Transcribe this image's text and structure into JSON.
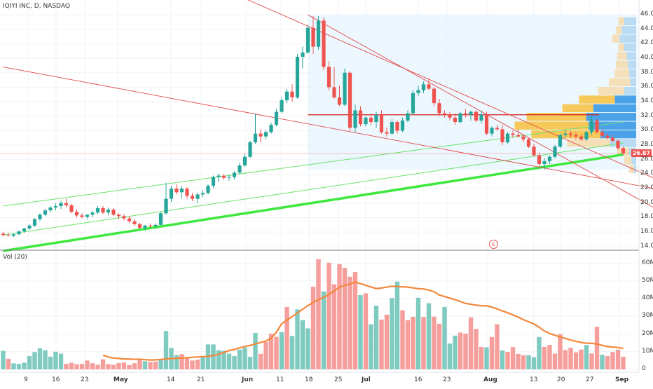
{
  "header": {
    "title": "IQIYI INC, D, NASDAQ"
  },
  "volume_panel": {
    "title": "Vol (20)"
  },
  "last_price_label": "26.87",
  "earnings_marker": "E",
  "colors": {
    "up": "#26a69a",
    "down": "#ef5350",
    "up_vol": "#7fcbc0",
    "down_vol": "#f59e9b",
    "ma": "#f4873b",
    "trend_strong": "#3ee83e",
    "trend_thin": "#69e269",
    "red_line": "#e04848",
    "hline": "#d62020",
    "vp_blue": "#4aa3e8",
    "vp_orange": "#f7c85a",
    "vp_beige": "#f5dfb8",
    "vp_lightblue": "#b9dcf3",
    "range_box": "#e3f2fd"
  },
  "chart_data": {
    "type": "candlestick",
    "title": "IQIYI INC, D, NASDAQ",
    "price_axis": {
      "ticks": [
        "14.00",
        "16.00",
        "18.00",
        "20.00",
        "22.00",
        "24.00",
        "26.00",
        "28.00",
        "30.00",
        "32.00",
        "34.00",
        "36.00",
        "38.00",
        "40.00",
        "42.00",
        "44.00",
        "46.00"
      ],
      "range": [
        13.5,
        46.3
      ]
    },
    "volume_axis": {
      "ticks": [
        "0",
        "10M",
        "20M",
        "30M",
        "40M",
        "50M",
        "60M"
      ],
      "range": [
        0,
        63
      ]
    },
    "time_axis": {
      "ticks": [
        "9",
        "16",
        "23",
        "May",
        "14",
        "21",
        "Jun",
        "11",
        "18",
        "25",
        "Jul",
        "16",
        "23",
        "Aug",
        "13",
        "20",
        "27",
        "Sep"
      ]
    },
    "candles": [
      [
        15.8,
        16.0,
        15.4,
        15.6
      ],
      [
        15.6,
        15.9,
        15.4,
        15.5
      ],
      [
        15.5,
        15.8,
        15.3,
        15.7
      ],
      [
        15.7,
        16.2,
        15.6,
        16.1
      ],
      [
        16.1,
        16.6,
        15.9,
        16.5
      ],
      [
        16.5,
        17.1,
        16.3,
        16.9
      ],
      [
        16.9,
        17.9,
        16.7,
        17.8
      ],
      [
        17.8,
        18.6,
        17.5,
        18.4
      ],
      [
        18.4,
        19.2,
        18.2,
        19.0
      ],
      [
        19.0,
        19.6,
        18.8,
        19.4
      ],
      [
        19.4,
        20.0,
        19.0,
        19.6
      ],
      [
        19.6,
        20.3,
        19.2,
        20.0
      ],
      [
        20.0,
        20.6,
        19.4,
        19.7
      ],
      [
        19.7,
        19.9,
        18.6,
        18.8
      ],
      [
        18.8,
        19.2,
        18.0,
        18.3
      ],
      [
        18.3,
        18.6,
        17.9,
        18.1
      ],
      [
        18.1,
        18.5,
        17.8,
        18.4
      ],
      [
        18.4,
        18.9,
        18.1,
        18.7
      ],
      [
        18.7,
        19.6,
        18.5,
        19.3
      ],
      [
        19.3,
        19.6,
        18.5,
        18.7
      ],
      [
        18.7,
        19.4,
        18.3,
        19.1
      ],
      [
        19.1,
        19.3,
        18.2,
        18.4
      ],
      [
        18.4,
        18.6,
        17.8,
        18.2
      ],
      [
        18.2,
        18.5,
        17.6,
        17.9
      ],
      [
        17.9,
        18.2,
        17.3,
        17.5
      ],
      [
        17.5,
        17.8,
        16.9,
        17.1
      ],
      [
        17.1,
        17.3,
        16.4,
        16.6
      ],
      [
        16.6,
        17.0,
        16.2,
        16.9
      ],
      [
        16.9,
        17.2,
        16.6,
        16.8
      ],
      [
        16.8,
        17.2,
        16.5,
        17.0
      ],
      [
        17.0,
        18.8,
        16.9,
        18.6
      ],
      [
        18.6,
        22.8,
        18.4,
        20.6
      ],
      [
        20.6,
        22.4,
        20.2,
        22.0
      ],
      [
        22.0,
        22.6,
        21.2,
        21.5
      ],
      [
        21.5,
        22.4,
        20.6,
        22.0
      ],
      [
        22.0,
        22.2,
        20.6,
        21.0
      ],
      [
        21.0,
        21.4,
        20.3,
        20.6
      ],
      [
        20.6,
        21.4,
        20.0,
        21.2
      ],
      [
        21.2,
        21.8,
        20.8,
        21.4
      ],
      [
        21.4,
        22.6,
        21.2,
        22.4
      ],
      [
        22.4,
        23.8,
        22.1,
        23.6
      ],
      [
        23.6,
        24.1,
        22.9,
        23.8
      ],
      [
        23.8,
        24.0,
        23.2,
        23.5
      ],
      [
        23.5,
        23.9,
        23.1,
        23.6
      ],
      [
        23.6,
        24.4,
        23.3,
        24.2
      ],
      [
        24.2,
        25.6,
        24.0,
        25.2
      ],
      [
        25.2,
        26.8,
        25.0,
        26.4
      ],
      [
        26.4,
        28.6,
        26.2,
        28.4
      ],
      [
        28.4,
        32.3,
        28.2,
        29.6
      ],
      [
        29.6,
        30.2,
        28.4,
        29.2
      ],
      [
        29.2,
        30.1,
        28.8,
        29.8
      ],
      [
        29.8,
        31.1,
        29.6,
        30.8
      ],
      [
        30.8,
        33.0,
        30.6,
        32.6
      ],
      [
        32.6,
        34.6,
        32.4,
        34.2
      ],
      [
        34.2,
        35.8,
        33.8,
        35.4
      ],
      [
        35.4,
        36.4,
        34.0,
        34.6
      ],
      [
        34.6,
        40.6,
        34.4,
        40.2
      ],
      [
        40.2,
        41.6,
        38.6,
        40.8
      ],
      [
        40.8,
        44.6,
        40.6,
        44.2
      ],
      [
        44.2,
        45.8,
        40.6,
        41.6
      ],
      [
        41.6,
        45.8,
        41.2,
        45.2
      ],
      [
        45.2,
        45.6,
        38.4,
        38.8
      ],
      [
        38.8,
        39.6,
        35.6,
        36.0
      ],
      [
        36.0,
        38.8,
        34.4,
        34.6
      ],
      [
        34.6,
        36.2,
        33.4,
        33.6
      ],
      [
        33.6,
        38.6,
        33.4,
        38.0
      ],
      [
        38.0,
        38.2,
        30.0,
        30.4
      ],
      [
        30.4,
        33.6,
        29.8,
        32.8
      ],
      [
        32.8,
        33.4,
        30.6,
        30.9
      ],
      [
        30.9,
        32.0,
        30.6,
        31.8
      ],
      [
        31.8,
        32.4,
        30.8,
        31.2
      ],
      [
        31.2,
        32.6,
        30.4,
        32.2
      ],
      [
        32.2,
        32.8,
        29.6,
        29.8
      ],
      [
        29.8,
        30.4,
        29.2,
        29.6
      ],
      [
        29.6,
        31.6,
        29.4,
        31.2
      ],
      [
        31.2,
        31.4,
        29.6,
        30.0
      ],
      [
        30.0,
        31.8,
        29.8,
        31.4
      ],
      [
        31.4,
        32.8,
        31.2,
        32.4
      ],
      [
        32.4,
        35.6,
        32.2,
        35.2
      ],
      [
        35.2,
        36.2,
        34.8,
        35.6
      ],
      [
        35.6,
        36.8,
        35.2,
        36.4
      ],
      [
        36.4,
        37.2,
        35.6,
        35.8
      ],
      [
        35.8,
        36.0,
        33.4,
        33.8
      ],
      [
        33.8,
        34.4,
        32.0,
        32.4
      ],
      [
        32.4,
        32.8,
        31.8,
        32.2
      ],
      [
        32.2,
        32.6,
        31.4,
        31.8
      ],
      [
        31.8,
        32.4,
        30.8,
        31.2
      ],
      [
        31.2,
        32.6,
        31.0,
        32.4
      ],
      [
        32.4,
        33.0,
        31.8,
        32.2
      ],
      [
        32.2,
        32.8,
        31.4,
        32.6
      ],
      [
        32.6,
        32.8,
        31.2,
        31.4
      ],
      [
        31.4,
        32.8,
        31.0,
        32.2
      ],
      [
        32.2,
        32.6,
        29.4,
        29.6
      ],
      [
        29.6,
        30.6,
        29.2,
        30.4
      ],
      [
        30.4,
        30.8,
        30.0,
        30.2
      ],
      [
        30.2,
        30.8,
        28.0,
        28.4
      ],
      [
        28.4,
        29.8,
        28.2,
        29.6
      ],
      [
        29.6,
        30.0,
        29.0,
        29.4
      ],
      [
        29.4,
        30.2,
        29.0,
        29.2
      ],
      [
        29.2,
        29.6,
        28.4,
        28.8
      ],
      [
        28.8,
        29.0,
        27.6,
        27.8
      ],
      [
        27.8,
        28.2,
        26.4,
        26.6
      ],
      [
        26.6,
        27.0,
        25.0,
        25.4
      ],
      [
        25.4,
        26.2,
        24.6,
        25.8
      ],
      [
        25.8,
        26.6,
        25.4,
        26.4
      ],
      [
        26.4,
        28.0,
        26.2,
        27.8
      ],
      [
        27.8,
        29.6,
        27.6,
        29.4
      ],
      [
        29.4,
        30.2,
        29.0,
        29.6
      ],
      [
        29.6,
        30.0,
        29.0,
        29.4
      ],
      [
        29.4,
        29.8,
        28.8,
        29.2
      ],
      [
        29.2,
        29.6,
        28.6,
        28.8
      ],
      [
        28.8,
        30.0,
        28.6,
        29.8
      ],
      [
        29.8,
        32.2,
        29.4,
        31.4
      ],
      [
        31.4,
        31.6,
        29.6,
        29.8
      ],
      [
        29.8,
        30.2,
        29.0,
        29.3
      ],
      [
        29.3,
        29.6,
        28.8,
        29.0
      ],
      [
        29.0,
        29.4,
        28.4,
        28.6
      ],
      [
        28.6,
        28.8,
        27.4,
        27.6
      ],
      [
        27.6,
        27.8,
        26.6,
        26.9
      ]
    ],
    "volumes": [
      [
        10.5,
        "up"
      ],
      [
        6.0,
        "down"
      ],
      [
        3.4,
        "up"
      ],
      [
        3.1,
        "up"
      ],
      [
        3.8,
        "up"
      ],
      [
        7.5,
        "up"
      ],
      [
        9.8,
        "up"
      ],
      [
        11.9,
        "up"
      ],
      [
        10.8,
        "up"
      ],
      [
        7.2,
        "up"
      ],
      [
        10.0,
        "up"
      ],
      [
        8.9,
        "up"
      ],
      [
        3.1,
        "down"
      ],
      [
        3.8,
        "down"
      ],
      [
        2.9,
        "down"
      ],
      [
        3.1,
        "down"
      ],
      [
        5.0,
        "down"
      ],
      [
        3.5,
        "down"
      ],
      [
        2.6,
        "down"
      ],
      [
        5.7,
        "down"
      ],
      [
        3.0,
        "down"
      ],
      [
        2.6,
        "down"
      ],
      [
        3.6,
        "down"
      ],
      [
        3.9,
        "down"
      ],
      [
        2.4,
        "down"
      ],
      [
        3.5,
        "down"
      ],
      [
        5.8,
        "down"
      ],
      [
        4.6,
        "up"
      ],
      [
        4.2,
        "down"
      ],
      [
        4.4,
        "down"
      ],
      [
        5.4,
        "up"
      ],
      [
        21.7,
        "up"
      ],
      [
        12.1,
        "up"
      ],
      [
        8.1,
        "up"
      ],
      [
        8.6,
        "down"
      ],
      [
        6.9,
        "down"
      ],
      [
        5.0,
        "down"
      ],
      [
        5.5,
        "down"
      ],
      [
        7.1,
        "up"
      ],
      [
        14.1,
        "up"
      ],
      [
        14.1,
        "up"
      ],
      [
        10.8,
        "up"
      ],
      [
        10.5,
        "up"
      ],
      [
        8.9,
        "up"
      ],
      [
        7.5,
        "up"
      ],
      [
        11.2,
        "up"
      ],
      [
        12.3,
        "up"
      ],
      [
        7.1,
        "up"
      ],
      [
        20.6,
        "up"
      ],
      [
        8.8,
        "down"
      ],
      [
        15.5,
        "down"
      ],
      [
        20.1,
        "down"
      ],
      [
        18.4,
        "down"
      ],
      [
        21.0,
        "up"
      ],
      [
        35.3,
        "down"
      ],
      [
        18.9,
        "up"
      ],
      [
        33.9,
        "up"
      ],
      [
        27.8,
        "up"
      ],
      [
        23.2,
        "up"
      ],
      [
        46.7,
        "down"
      ],
      [
        62.3,
        "down"
      ],
      [
        44.1,
        "up"
      ],
      [
        60.3,
        "down"
      ],
      [
        48.1,
        "down"
      ],
      [
        59.5,
        "down"
      ],
      [
        57.4,
        "down"
      ],
      [
        52.4,
        "down"
      ],
      [
        55.0,
        "down"
      ],
      [
        42.0,
        "up"
      ],
      [
        43.0,
        "down"
      ],
      [
        25.5,
        "up"
      ],
      [
        36.0,
        "up"
      ],
      [
        28.1,
        "down"
      ],
      [
        30.9,
        "down"
      ],
      [
        40.3,
        "up"
      ],
      [
        49.6,
        "up"
      ],
      [
        33.4,
        "down"
      ],
      [
        27.8,
        "down"
      ],
      [
        29.7,
        "down"
      ],
      [
        40.5,
        "up"
      ],
      [
        29.6,
        "down"
      ],
      [
        37.4,
        "up"
      ],
      [
        29.8,
        "down"
      ],
      [
        25.8,
        "down"
      ],
      [
        35.3,
        "up"
      ],
      [
        14.6,
        "up"
      ],
      [
        19.1,
        "up"
      ],
      [
        20.8,
        "down"
      ],
      [
        20.2,
        "down"
      ],
      [
        29.4,
        "down"
      ],
      [
        22.9,
        "down"
      ],
      [
        12.7,
        "down"
      ],
      [
        12.5,
        "up"
      ],
      [
        18.3,
        "down"
      ],
      [
        25.5,
        "down"
      ],
      [
        10.7,
        "up"
      ],
      [
        9.9,
        "down"
      ],
      [
        12.6,
        "down"
      ],
      [
        8.8,
        "down"
      ],
      [
        8.0,
        "down"
      ],
      [
        8.0,
        "up"
      ],
      [
        6.9,
        "up"
      ],
      [
        18.3,
        "up"
      ],
      [
        12.7,
        "down"
      ],
      [
        13.8,
        "down"
      ],
      [
        8.9,
        "down"
      ],
      [
        19.9,
        "down"
      ],
      [
        10.9,
        "down"
      ],
      [
        12.2,
        "down"
      ],
      [
        9.6,
        "down"
      ],
      [
        11.2,
        "down"
      ],
      [
        13.8,
        "up"
      ],
      [
        9.0,
        "down"
      ],
      [
        24.1,
        "down"
      ],
      [
        8.2,
        "up"
      ],
      [
        7.5,
        "down"
      ],
      [
        9.8,
        "down"
      ],
      [
        11.2,
        "down"
      ],
      [
        7.1,
        "down"
      ]
    ],
    "volume_ma": [
      null,
      null,
      null,
      null,
      null,
      null,
      null,
      null,
      null,
      null,
      null,
      null,
      null,
      null,
      null,
      null,
      null,
      null,
      null,
      8.0,
      7.0,
      6.4,
      6.2,
      5.9,
      5.8,
      5.7,
      5.7,
      5.5,
      5.3,
      5.4,
      5.6,
      5.9,
      6.1,
      6.3,
      6.4,
      6.6,
      6.8,
      7.0,
      7.2,
      7.4,
      7.8,
      8.5,
      9.6,
      10.6,
      11.3,
      12.2,
      12.9,
      13.6,
      14.4,
      15.2,
      16.1,
      17.6,
      21.0,
      25.8,
      27.8,
      29.9,
      31.9,
      34.0,
      36.0,
      37.8,
      39.5,
      40.7,
      42.3,
      44.3,
      46.5,
      47.5,
      48.2,
      49.4,
      48.4,
      47.6,
      46.6,
      45.7,
      46.0,
      46.5,
      47.0,
      46.8,
      46.7,
      46.5,
      46.1,
      45.6,
      45.5,
      44.8,
      43.9,
      42.0,
      41.2,
      40.3,
      39.4,
      38.4,
      37.3,
      36.8,
      36.3,
      36.0,
      35.9,
      35.2,
      34.2,
      33.0,
      32.0,
      30.8,
      29.6,
      28.1,
      26.9,
      25.7,
      23.8,
      21.7,
      20.3,
      19.3,
      18.3,
      17.5,
      16.6,
      15.9,
      15.2,
      14.8,
      14.7,
      14.4,
      13.6,
      12.9,
      12.6,
      12.4,
      11.8
    ],
    "trendlines": [
      {
        "name": "support-strong",
        "points": [
          [
            0,
            13.4
          ],
          [
            118,
            26.7
          ]
        ],
        "style": "strong"
      },
      {
        "name": "channel-upper",
        "points": [
          [
            0,
            19.6
          ],
          [
            118,
            31.2
          ]
        ],
        "style": "thin"
      },
      {
        "name": "channel-lower",
        "points": [
          [
            0,
            15.6
          ],
          [
            118,
            28.3
          ]
        ],
        "style": "thin"
      },
      {
        "name": "descending-long",
        "points": [
          [
            0,
            38.8
          ],
          [
            124,
            22.0
          ]
        ],
        "style": "red"
      },
      {
        "name": "descending-steep",
        "points": [
          [
            38,
            50.8
          ],
          [
            124,
            23.4
          ]
        ],
        "style": "red"
      },
      {
        "name": "descending-channel",
        "points": [
          [
            58,
            46.0
          ],
          [
            124,
            19.3
          ]
        ],
        "style": "red"
      }
    ],
    "horizontal_level": {
      "price": 32.2,
      "from_index": 58
    },
    "range_box": {
      "from_index": 58,
      "to_index": 124,
      "price_top": 46.0,
      "price_bottom": 24.6
    },
    "volume_profile": [
      [
        45.1,
        0.1,
        0.05
      ],
      [
        43.9,
        0.12,
        0.05
      ],
      [
        42.7,
        0.14,
        0.06
      ],
      [
        41.5,
        0.1,
        0.05
      ],
      [
        40.3,
        0.08,
        0.08
      ],
      [
        39.1,
        0.07,
        0.1
      ],
      [
        37.9,
        0.06,
        0.12
      ],
      [
        36.7,
        0.05,
        0.18
      ],
      [
        35.5,
        0.1,
        0.22
      ],
      [
        34.3,
        0.18,
        0.3
      ],
      [
        33.1,
        0.36,
        0.26
      ],
      [
        31.9,
        0.42,
        0.5
      ],
      [
        30.7,
        0.4,
        0.62
      ],
      [
        29.5,
        0.3,
        0.58
      ],
      [
        28.3,
        0.22,
        0.36
      ],
      [
        27.1,
        0.06,
        0.1
      ],
      [
        25.9,
        0.04,
        0.06
      ],
      [
        24.7,
        0.02,
        0.04
      ]
    ]
  }
}
